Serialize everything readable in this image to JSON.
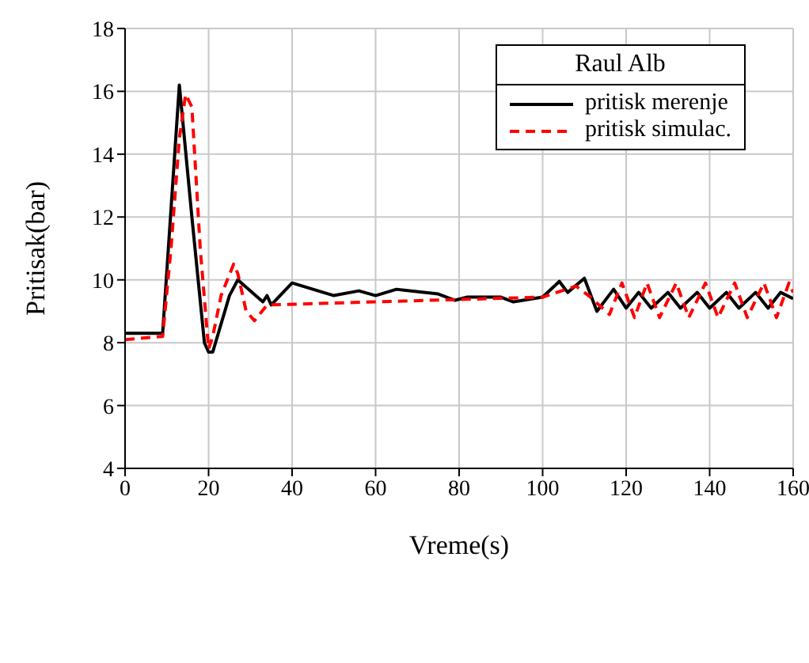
{
  "chart_data": {
    "type": "line",
    "xlabel": "Vreme(s)",
    "ylabel": "Pritisak(bar)",
    "legend_title": "Raul Alb",
    "xlim": [
      0,
      160
    ],
    "xticks": [
      0,
      20,
      40,
      60,
      80,
      100,
      120,
      140,
      160
    ],
    "ylim": [
      4,
      18
    ],
    "yticks": [
      4,
      6,
      8,
      10,
      12,
      14,
      16,
      18
    ],
    "grid": true,
    "legend": "top right",
    "marker": "none",
    "series": [
      {
        "name": "pritisk merenje",
        "color": "#000000",
        "line_style": "solid",
        "x": [
          0,
          9,
          13,
          16,
          19,
          20,
          21,
          25,
          27,
          33,
          34,
          35,
          40,
          45,
          50,
          56,
          60,
          65,
          75,
          79,
          82,
          90,
          93,
          100,
          104,
          106,
          110,
          113,
          117,
          120,
          123,
          126,
          130,
          133,
          137,
          140,
          144,
          147,
          151,
          154,
          157,
          160
        ],
        "values": [
          8.3,
          8.3,
          16.2,
          12,
          8,
          7.7,
          7.7,
          9.5,
          10,
          9.3,
          9.5,
          9.2,
          9.9,
          9.7,
          9.5,
          9.65,
          9.5,
          9.7,
          9.55,
          9.35,
          9.45,
          9.45,
          9.3,
          9.45,
          9.95,
          9.6,
          10.05,
          9.0,
          9.7,
          9.1,
          9.6,
          9.1,
          9.6,
          9.1,
          9.6,
          9.1,
          9.6,
          9.1,
          9.6,
          9.1,
          9.6,
          9.4
        ]
      },
      {
        "name": "pritisk simulac.",
        "color": "#ff0000",
        "line_style": "dashed",
        "x": [
          0,
          9,
          11,
          13,
          14.5,
          16,
          18,
          20,
          21,
          23,
          26,
          27,
          29,
          31,
          34,
          60,
          100,
          108,
          111,
          116,
          119,
          122,
          125,
          128,
          132,
          135,
          139,
          142,
          146,
          149,
          153,
          156,
          159,
          160
        ],
        "values": [
          8.1,
          8.2,
          11,
          14.5,
          15.9,
          15.5,
          11,
          7.8,
          8.2,
          9.5,
          10.5,
          10.2,
          9,
          8.7,
          9.2,
          9.3,
          9.45,
          9.8,
          9.5,
          8.9,
          9.9,
          8.8,
          9.9,
          8.8,
          9.9,
          8.8,
          9.9,
          8.8,
          9.9,
          8.8,
          9.9,
          8.8,
          9.9,
          9.6
        ]
      }
    ]
  }
}
